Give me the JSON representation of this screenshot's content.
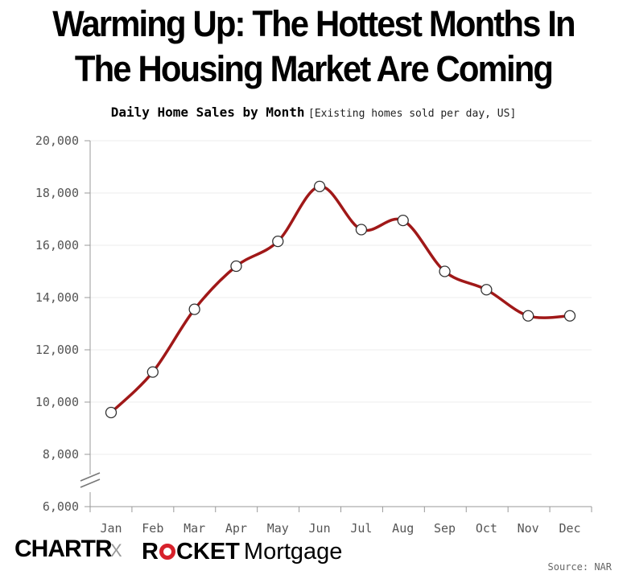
{
  "title_line1": "Warming Up: The Hottest Months In",
  "title_line2": "The Housing Market Are Coming",
  "subtitle": "Daily Home Sales by Month",
  "subtitle_note": "[Existing homes sold per day, US]",
  "footer": {
    "brand1": "CHARTR",
    "separator": "X",
    "brand2_part1": "R",
    "brand2_part2": "CKET",
    "brand2_part3": "Mortgage",
    "source": "Source: NAR"
  },
  "colors": {
    "line": "#a01818",
    "ring": "#d7212b",
    "axis": "#999999",
    "grid": "#eeeeee"
  },
  "chart_data": {
    "type": "line",
    "categories": [
      "Jan",
      "Feb",
      "Mar",
      "Apr",
      "May",
      "Jun",
      "Jul",
      "Aug",
      "Sep",
      "Oct",
      "Nov",
      "Dec"
    ],
    "values": [
      9600,
      11150,
      13550,
      15200,
      16150,
      18250,
      16600,
      16950,
      15000,
      14300,
      13300,
      13300
    ],
    "ylim": [
      6000,
      20000
    ],
    "y_ticks": [
      6000,
      8000,
      10000,
      12000,
      14000,
      16000,
      18000,
      20000
    ],
    "y_tick_labels": [
      "6,000",
      "8,000",
      "10,000",
      "12,000",
      "14,000",
      "16,000",
      "18,000",
      "20,000"
    ],
    "axis_break": true,
    "title": "Daily Home Sales by Month",
    "xlabel": "",
    "ylabel": ""
  }
}
